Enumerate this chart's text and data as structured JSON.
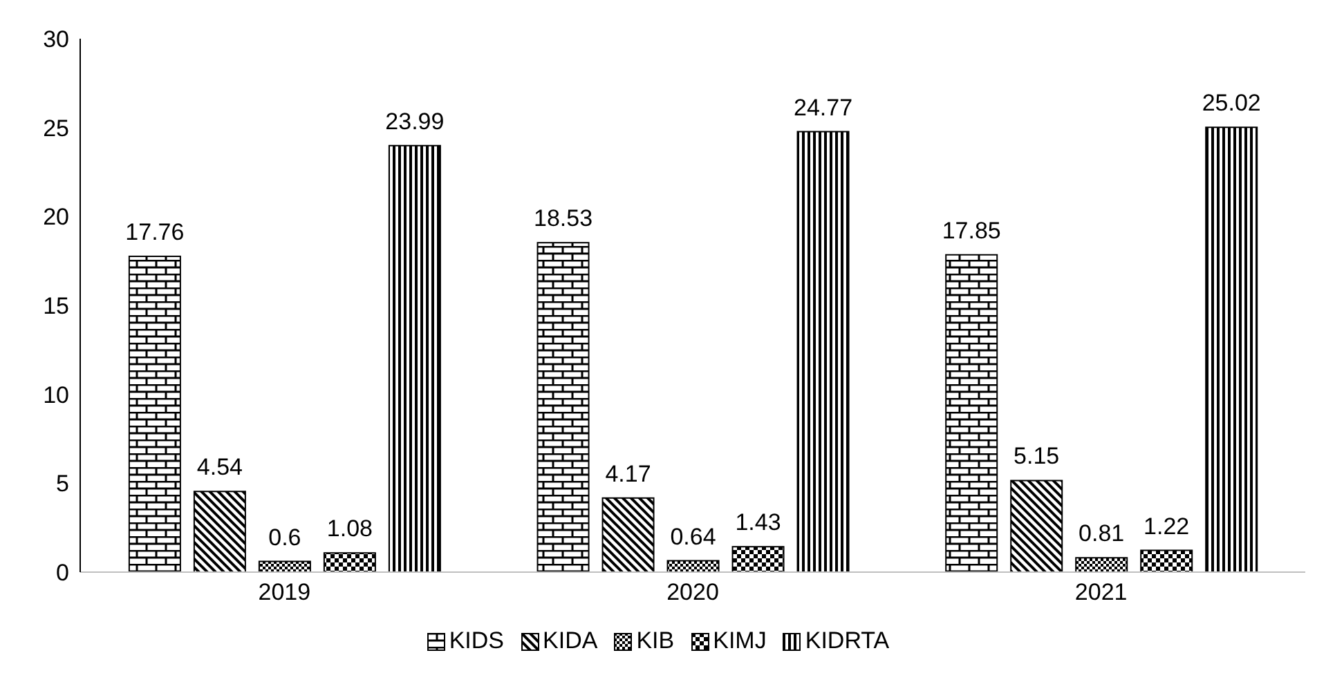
{
  "chart_data": {
    "type": "bar",
    "categories": [
      "2019",
      "2020",
      "2021"
    ],
    "series": [
      {
        "name": "KIDS",
        "color": "#000000",
        "values": [
          17.76,
          18.53,
          17.85
        ]
      },
      {
        "name": "KIDA",
        "color": "#000000",
        "values": [
          4.54,
          4.17,
          5.15
        ]
      },
      {
        "name": "KIB",
        "color": "#000000",
        "values": [
          0.6,
          0.64,
          0.81
        ]
      },
      {
        "name": "KIMJ",
        "color": "#000000",
        "values": [
          1.08,
          1.43,
          1.22
        ]
      },
      {
        "name": "KIDRTA",
        "color": "#000000",
        "values": [
          23.99,
          24.77,
          25.02
        ]
      }
    ],
    "ylim": [
      0,
      30
    ],
    "yticks": [
      0,
      5,
      10,
      15,
      20,
      25,
      30
    ],
    "grid": false,
    "legend": "bottom",
    "data_labels": true
  }
}
